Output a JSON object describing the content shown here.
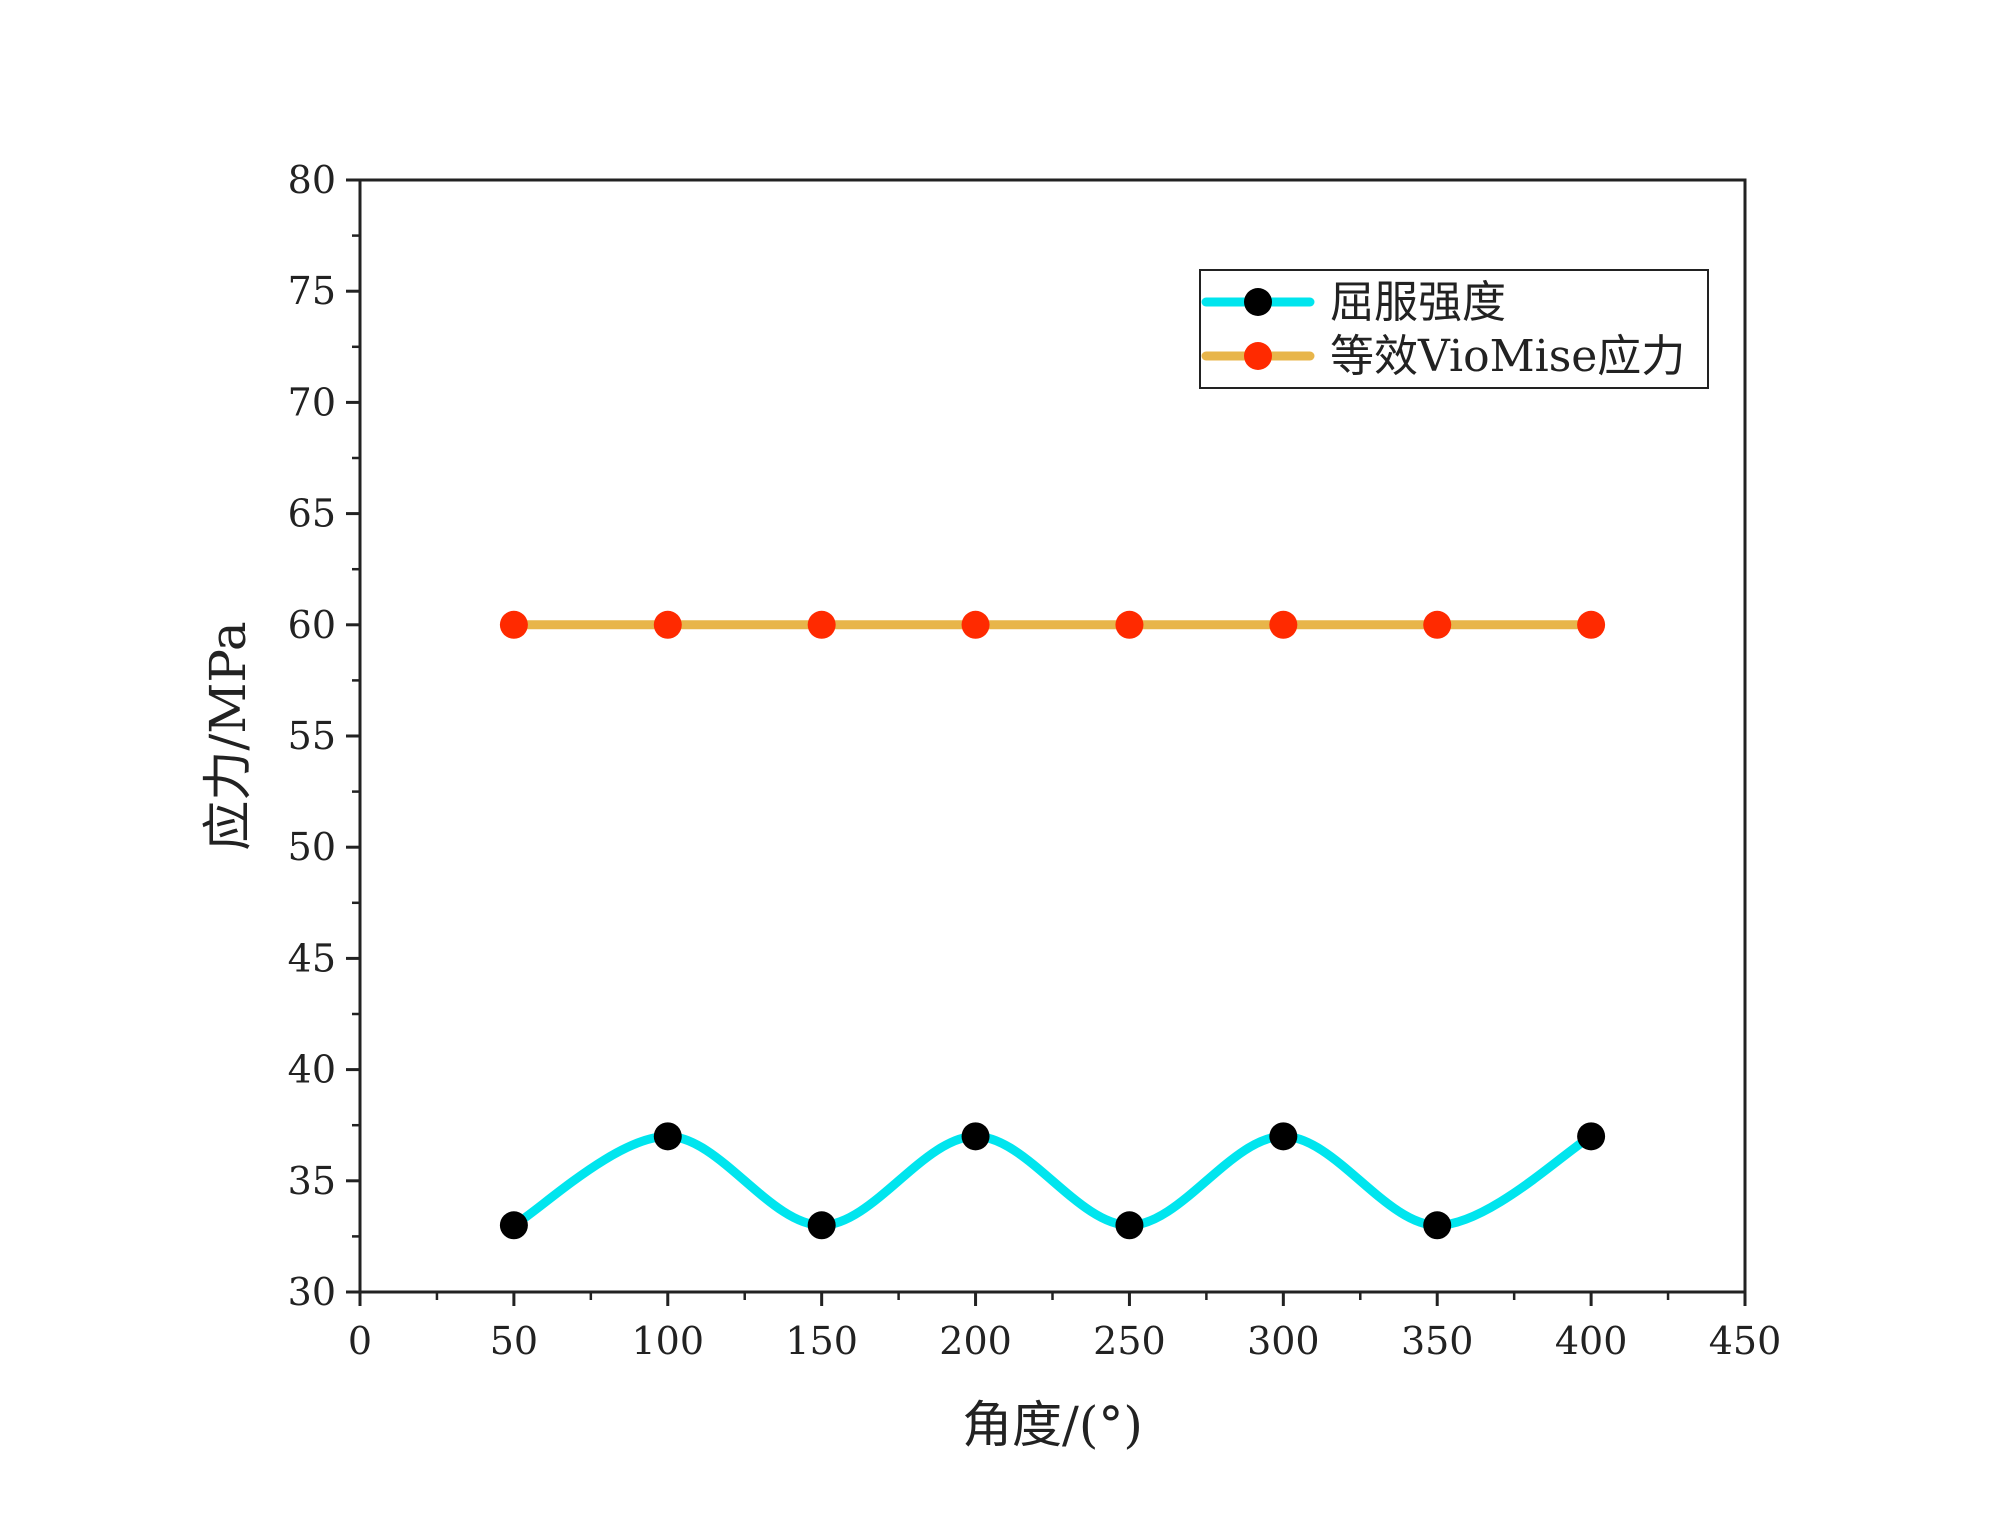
{
  "chart_data": {
    "type": "line",
    "xlabel": "角度/(°)",
    "ylabel": "应力/MPa",
    "xlim": [
      0,
      450
    ],
    "ylim": [
      30,
      80
    ],
    "x_ticks": [
      "0",
      "50",
      "100",
      "150",
      "200",
      "250",
      "300",
      "350",
      "400",
      "450"
    ],
    "y_ticks": [
      "30",
      "35",
      "40",
      "45",
      "50",
      "55",
      "60",
      "65",
      "70",
      "75",
      "80"
    ],
    "grid": false,
    "legend_position": "top-right",
    "series": [
      {
        "name": "屈服强度",
        "line_color": "#00E5EE",
        "marker_color": "#000000",
        "smooth": true,
        "x": [
          50,
          100,
          150,
          200,
          250,
          300,
          350,
          400
        ],
        "y": [
          33,
          37,
          33,
          37,
          33,
          37,
          33,
          37
        ]
      },
      {
        "name": "等效VioMise应力",
        "line_color": "#E8B54A",
        "marker_color": "#FF2A00",
        "smooth": false,
        "x": [
          50,
          100,
          150,
          200,
          250,
          300,
          350,
          400
        ],
        "y": [
          60,
          60,
          60,
          60,
          60,
          60,
          60,
          60
        ]
      }
    ]
  }
}
